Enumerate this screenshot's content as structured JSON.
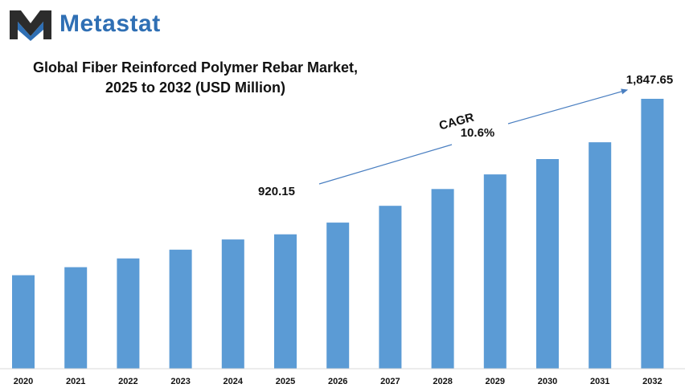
{
  "brand": {
    "name": "Metastat",
    "color": "#2f6fb4",
    "dark": "#2c2c2c"
  },
  "title_line1": "Global Fiber Reinforced Polymer Rebar Market,",
  "title_line2": "2025 to 2032 (USD Million)",
  "chart_data": {
    "type": "bar",
    "title": "Global Fiber Reinforced Polymer Rebar Market, 2025 to 2032 (USD Million)",
    "xlabel": "",
    "ylabel": "",
    "categories": [
      "2020",
      "2021",
      "2022",
      "2023",
      "2024",
      "2025",
      "2026",
      "2027",
      "2028",
      "2029",
      "2030",
      "2031",
      "2032"
    ],
    "values": [
      640,
      695,
      755,
      815,
      885,
      920.15,
      1000,
      1115,
      1230,
      1330,
      1435,
      1550,
      1847.65
    ],
    "bar_color": "#5b9bd5",
    "grid": false,
    "annotations": {
      "start_label": "920.15",
      "end_label": "1,847.65",
      "cagr_label": "CAGR",
      "cagr_value": "10.6%"
    }
  }
}
